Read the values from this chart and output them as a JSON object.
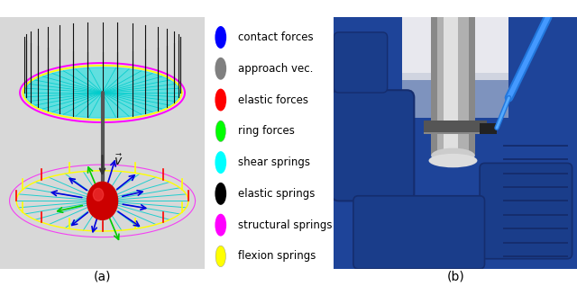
{
  "legend_items": [
    {
      "label": "contact forces",
      "color": "#0000ff"
    },
    {
      "label": "approach vec.",
      "color": "#808080"
    },
    {
      "label": "elastic forces",
      "color": "#ff0000"
    },
    {
      "label": "ring forces",
      "color": "#00ff00"
    },
    {
      "label": "shear springs",
      "color": "#00ffff"
    },
    {
      "label": "elastic springs",
      "color": "#000000"
    },
    {
      "label": "structural springs",
      "color": "#ff00ff"
    },
    {
      "label": "flexion springs",
      "color": "#ffff00"
    }
  ],
  "label_a": "(a)",
  "label_b": "(b)",
  "background_color": "#ffffff",
  "legend_fontsize": 8.5,
  "label_fontsize": 10,
  "fig_width": 6.4,
  "fig_height": 3.18
}
